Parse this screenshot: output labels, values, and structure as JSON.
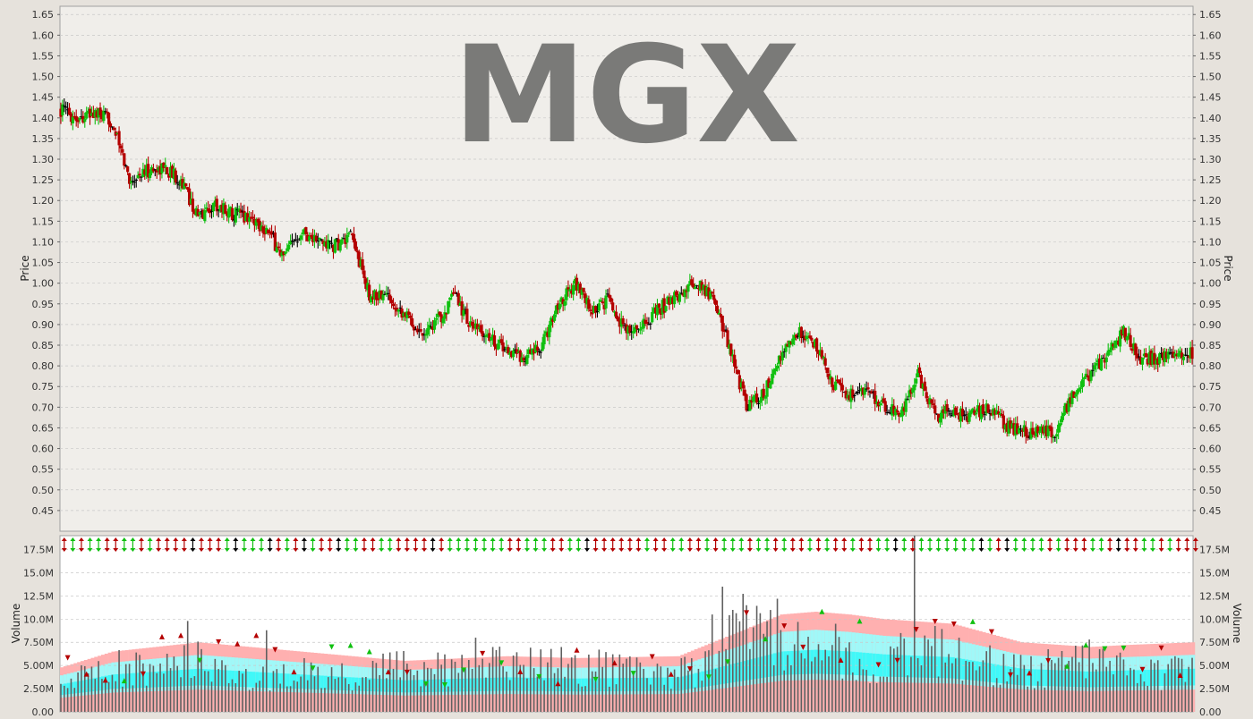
{
  "chart_data": [
    {
      "type": "ohlc",
      "watermark": "MGX",
      "ylabel": "Price",
      "ylim": [
        0.4,
        1.67
      ],
      "yticks": [
        "0.45",
        "0.50",
        "0.55",
        "0.60",
        "0.65",
        "0.70",
        "0.75",
        "0.80",
        "0.85",
        "0.90",
        "0.95",
        "1.00",
        "1.05",
        "1.10",
        "1.15",
        "1.20",
        "1.25",
        "1.30",
        "1.35",
        "1.40",
        "1.45",
        "1.50",
        "1.55",
        "1.60",
        "1.65"
      ],
      "grid": true,
      "colors": {
        "up": "#10c010",
        "down": "#b40000",
        "neutral": "#000000",
        "background": "#f0eeea",
        "grid": "#c8c8c8"
      },
      "price_path": [
        [
          0,
          1.42
        ],
        [
          10,
          1.4
        ],
        [
          20,
          1.41
        ],
        [
          30,
          1.39
        ],
        [
          40,
          1.25
        ],
        [
          50,
          1.27
        ],
        [
          60,
          1.28
        ],
        [
          70,
          1.25
        ],
        [
          80,
          1.16
        ],
        [
          90,
          1.19
        ],
        [
          100,
          1.17
        ],
        [
          110,
          1.16
        ],
        [
          120,
          1.13
        ],
        [
          130,
          1.06
        ],
        [
          140,
          1.13
        ],
        [
          150,
          1.1
        ],
        [
          160,
          1.09
        ],
        [
          170,
          1.11
        ],
        [
          180,
          0.97
        ],
        [
          190,
          0.97
        ],
        [
          200,
          0.93
        ],
        [
          210,
          0.88
        ],
        [
          220,
          0.91
        ],
        [
          230,
          0.97
        ],
        [
          240,
          0.89
        ],
        [
          250,
          0.87
        ],
        [
          260,
          0.84
        ],
        [
          270,
          0.82
        ],
        [
          280,
          0.84
        ],
        [
          290,
          0.95
        ],
        [
          300,
          1.0
        ],
        [
          310,
          0.93
        ],
        [
          320,
          0.96
        ],
        [
          330,
          0.88
        ],
        [
          340,
          0.9
        ],
        [
          350,
          0.94
        ],
        [
          360,
          0.97
        ],
        [
          370,
          1.0
        ],
        [
          380,
          0.97
        ],
        [
          390,
          0.85
        ],
        [
          400,
          0.7
        ],
        [
          410,
          0.73
        ],
        [
          420,
          0.82
        ],
        [
          430,
          0.88
        ],
        [
          440,
          0.85
        ],
        [
          450,
          0.76
        ],
        [
          460,
          0.73
        ],
        [
          470,
          0.74
        ],
        [
          480,
          0.7
        ],
        [
          490,
          0.68
        ],
        [
          500,
          0.78
        ],
        [
          510,
          0.68
        ],
        [
          520,
          0.69
        ],
        [
          530,
          0.68
        ],
        [
          540,
          0.7
        ],
        [
          550,
          0.66
        ],
        [
          560,
          0.64
        ],
        [
          570,
          0.64
        ],
        [
          580,
          0.64
        ],
        [
          590,
          0.73
        ],
        [
          600,
          0.78
        ],
        [
          610,
          0.83
        ],
        [
          620,
          0.88
        ],
        [
          630,
          0.82
        ],
        [
          640,
          0.82
        ],
        [
          650,
          0.82
        ],
        [
          660,
          0.83
        ]
      ]
    },
    {
      "type": "bar",
      "ylabel": "Volume",
      "ylim": [
        0,
        19000000
      ],
      "yticks": [
        "0.00",
        "2.50M",
        "5.00M",
        "7.50M",
        "10.0M",
        "12.5M",
        "15.0M",
        "17.5M"
      ],
      "grid": true,
      "colors": {
        "bar": "#606060",
        "band_outer": "#ffb0b0",
        "band_mid": "#a0f8f8",
        "band_inner": "#40f8f8",
        "band_core": "#ffb0b0",
        "up": "#10c010",
        "down": "#b40000",
        "neutral": "#000000",
        "background": "#ffffff"
      },
      "volume_path": [
        [
          0,
          3.0
        ],
        [
          20,
          4.0
        ],
        [
          40,
          5.0
        ],
        [
          60,
          4.5
        ],
        [
          80,
          5.5
        ],
        [
          100,
          4.0
        ],
        [
          120,
          3.5
        ],
        [
          140,
          4.2
        ],
        [
          160,
          3.6
        ],
        [
          180,
          4.5
        ],
        [
          200,
          5.5
        ],
        [
          210,
          4.2
        ],
        [
          220,
          5.0
        ],
        [
          240,
          4.5
        ],
        [
          260,
          5.2
        ],
        [
          280,
          4.8
        ],
        [
          300,
          5.0
        ],
        [
          320,
          4.5
        ],
        [
          340,
          4.0
        ],
        [
          360,
          4.2
        ],
        [
          380,
          5.0
        ],
        [
          390,
          8.0
        ],
        [
          400,
          9.0
        ],
        [
          410,
          8.5
        ],
        [
          420,
          7.0
        ],
        [
          440,
          6.5
        ],
        [
          460,
          5.5
        ],
        [
          480,
          5.0
        ],
        [
          500,
          7.0
        ],
        [
          520,
          6.0
        ],
        [
          540,
          5.0
        ],
        [
          560,
          4.5
        ],
        [
          580,
          4.8
        ],
        [
          600,
          5.2
        ],
        [
          620,
          4.5
        ],
        [
          640,
          4.2
        ],
        [
          660,
          4.5
        ]
      ],
      "band_path": [
        [
          0,
          4.8
        ],
        [
          30,
          6.5
        ],
        [
          80,
          7.5
        ],
        [
          140,
          6.5
        ],
        [
          200,
          5.5
        ],
        [
          260,
          6.0
        ],
        [
          300,
          5.8
        ],
        [
          360,
          6.0
        ],
        [
          400,
          9.0
        ],
        [
          420,
          10.5
        ],
        [
          440,
          10.8
        ],
        [
          460,
          10.5
        ],
        [
          480,
          10.0
        ],
        [
          520,
          9.5
        ],
        [
          560,
          7.5
        ],
        [
          600,
          7.0
        ],
        [
          620,
          7.2
        ],
        [
          660,
          7.5
        ]
      ],
      "spike_bars": [
        [
          74,
          9.8
        ],
        [
          120,
          8.8
        ],
        [
          182,
          5.5
        ],
        [
          215,
          6.0
        ],
        [
          242,
          8.0
        ],
        [
          355,
          6.5
        ],
        [
          365,
          5.2
        ],
        [
          380,
          10.5
        ],
        [
          386,
          13.5
        ],
        [
          400,
          11.5
        ],
        [
          418,
          12.2
        ],
        [
          443,
          7.8
        ],
        [
          452,
          9.5
        ],
        [
          460,
          7.5
        ],
        [
          490,
          8.5
        ],
        [
          498,
          19.0
        ],
        [
          528,
          5.5
        ],
        [
          556,
          6.2
        ],
        [
          600,
          7.8
        ],
        [
          605,
          8.5
        ],
        [
          612,
          5.5
        ],
        [
          650,
          6.0
        ]
      ]
    }
  ]
}
